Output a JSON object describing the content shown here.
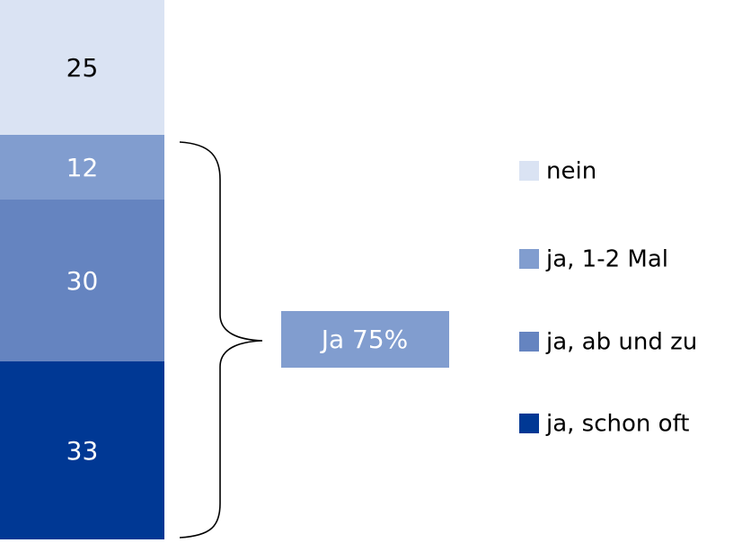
{
  "chart_data": {
    "type": "stacked_bar",
    "annotation": "Ja 75%",
    "series": [
      {
        "name": "nein",
        "color": "#dae3f3",
        "text_color": "#000000",
        "values": [
          25
        ]
      },
      {
        "name": "ja, 1-2 Mal",
        "color": "#819dcf",
        "text_color": "#ffffff",
        "values": [
          12
        ]
      },
      {
        "name": "ja, ab und zu",
        "color": "#6584c0",
        "text_color": "#ffffff",
        "values": [
          30
        ]
      },
      {
        "name": "ja, schon oft",
        "color": "#003894",
        "text_color": "#ffffff",
        "values": [
          33
        ]
      }
    ]
  }
}
